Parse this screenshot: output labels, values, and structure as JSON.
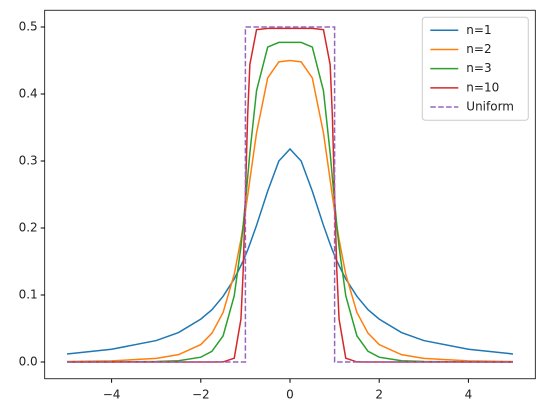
{
  "chart_data": {
    "type": "line",
    "x": [
      -5,
      -4,
      -3,
      -2.5,
      -2,
      -1.75,
      -1.5,
      -1.25,
      -1.1,
      -1.05,
      -1,
      -0.95,
      -0.9,
      -0.75,
      -0.5,
      -0.25,
      0,
      0.25,
      0.5,
      0.75,
      0.9,
      0.95,
      1,
      1.05,
      1.1,
      1.25,
      1.5,
      1.75,
      2,
      2.5,
      3,
      4,
      5
    ],
    "series": [
      {
        "name": "n=1",
        "color": "#1f77b4",
        "values": [
          0.012,
          0.019,
          0.032,
          0.044,
          0.064,
          0.078,
          0.098,
          0.124,
          0.144,
          0.151,
          0.159,
          0.167,
          0.176,
          0.204,
          0.255,
          0.3,
          0.318,
          0.3,
          0.255,
          0.204,
          0.176,
          0.167,
          0.159,
          0.151,
          0.144,
          0.124,
          0.098,
          0.078,
          0.064,
          0.044,
          0.032,
          0.019,
          0.012
        ]
      },
      {
        "name": "n=2",
        "color": "#ff7f0e",
        "values": [
          0.0007,
          0.0017,
          0.0054,
          0.011,
          0.026,
          0.043,
          0.074,
          0.131,
          0.183,
          0.203,
          0.225,
          0.248,
          0.272,
          0.342,
          0.424,
          0.448,
          0.45,
          0.448,
          0.424,
          0.342,
          0.272,
          0.248,
          0.225,
          0.203,
          0.183,
          0.131,
          0.074,
          0.043,
          0.026,
          0.011,
          0.0054,
          0.0017,
          0.0007
        ]
      },
      {
        "name": "n=3",
        "color": "#2ca02c",
        "values": [
          0,
          0.0001,
          0.0007,
          0.0019,
          0.0072,
          0.016,
          0.039,
          0.099,
          0.172,
          0.204,
          0.239,
          0.275,
          0.312,
          0.405,
          0.47,
          0.477,
          0.477,
          0.477,
          0.47,
          0.405,
          0.312,
          0.275,
          0.239,
          0.204,
          0.172,
          0.099,
          0.039,
          0.016,
          0.0072,
          0.0019,
          0.0007,
          0.0001,
          0
        ]
      },
      {
        "name": "n=10",
        "color": "#d62728",
        "values": [
          0,
          0,
          0,
          0,
          0,
          0,
          0.00015,
          0.0057,
          0.064,
          0.136,
          0.249,
          0.367,
          0.444,
          0.496,
          0.498,
          0.498,
          0.498,
          0.498,
          0.498,
          0.496,
          0.444,
          0.367,
          0.249,
          0.136,
          0.064,
          0.0057,
          0.00015,
          0,
          0,
          0,
          0,
          0,
          0
        ]
      },
      {
        "name": "Uniform",
        "color": "#9467bd",
        "dashed": true,
        "x": [
          -5,
          -1,
          -1,
          1,
          1,
          5
        ],
        "values": [
          0,
          0,
          0.5,
          0.5,
          0,
          0
        ]
      }
    ],
    "xlim": [
      -5.5,
      5.5
    ],
    "xticks": [
      -4,
      -2,
      0,
      2,
      4
    ],
    "ylim": [
      -0.025,
      0.525
    ],
    "yticks": [
      0.0,
      0.1,
      0.2,
      0.3,
      0.4,
      0.5
    ],
    "legend": "upper-right",
    "grid": false
  }
}
